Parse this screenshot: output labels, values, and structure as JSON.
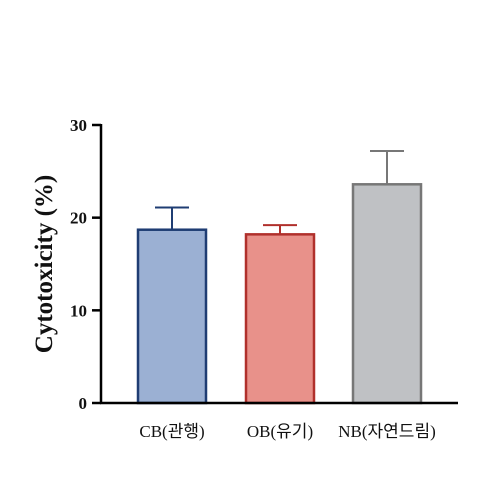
{
  "chart_data": {
    "type": "bar",
    "title": "",
    "xlabel": "",
    "ylabel": "Cytotoxicity (%)",
    "ylim": [
      0,
      30
    ],
    "yticks": [
      0,
      10,
      20,
      30
    ],
    "ytick_labels": [
      "0",
      "10",
      "20",
      "30"
    ],
    "categories": [
      "CB(관행)",
      "OB(유기)",
      "NB(자연드림)"
    ],
    "values": [
      18.7,
      18.2,
      23.6
    ],
    "errors": [
      2.4,
      1.0,
      3.6
    ],
    "fill_colors": [
      "#9bb0d3",
      "#e8918a",
      "#bfc1c4"
    ],
    "edge_colors": [
      "#1f3d73",
      "#b0302c",
      "#777777"
    ],
    "grid": false,
    "legend": "none"
  }
}
